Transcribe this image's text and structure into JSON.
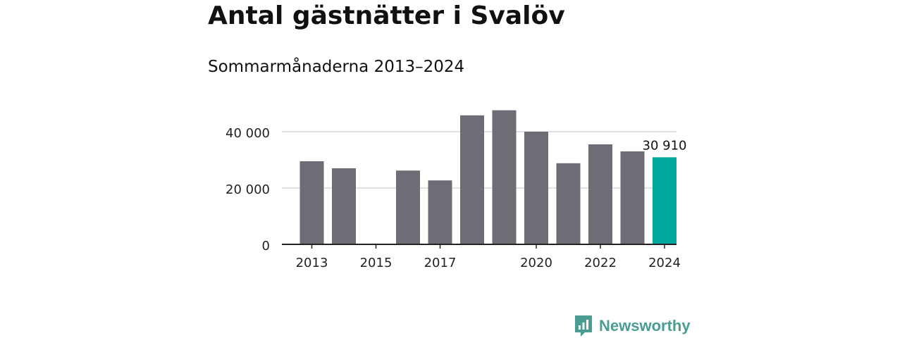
{
  "title": "Antal gästnätter i Svalöv",
  "subtitle": "Sommarmånaderna 2013–2024",
  "brand": "Newsworthy",
  "colors": {
    "bar": "#6e6d75",
    "highlight": "#00a99d",
    "grid": "#d9d9d9",
    "axis": "#222222",
    "brand": "#4a9d93"
  },
  "chart_data": {
    "type": "bar",
    "title": "Antal gästnätter i Svalöv",
    "subtitle": "Sommarmånaderna 2013–2024",
    "xlabel": "",
    "ylabel": "",
    "ylim": [
      0,
      50000
    ],
    "categories": [
      "2013",
      "2014",
      "2015",
      "2016",
      "2017",
      "2018",
      "2019",
      "2020",
      "2021",
      "2022",
      "2023",
      "2024"
    ],
    "values": [
      29500,
      27000,
      null,
      26200,
      22700,
      45800,
      47600,
      40000,
      28800,
      35500,
      33000,
      30910
    ],
    "x_tick_labels": [
      "2013",
      "2015",
      "2017",
      "2020",
      "2022",
      "2024"
    ],
    "y_ticks": [
      0,
      20000,
      40000
    ],
    "y_tick_labels": [
      "0",
      "20 000",
      "40 000"
    ],
    "grid": true,
    "highlight_category": "2024",
    "annotations": [
      {
        "category": "2024",
        "text": "30 910"
      }
    ]
  }
}
